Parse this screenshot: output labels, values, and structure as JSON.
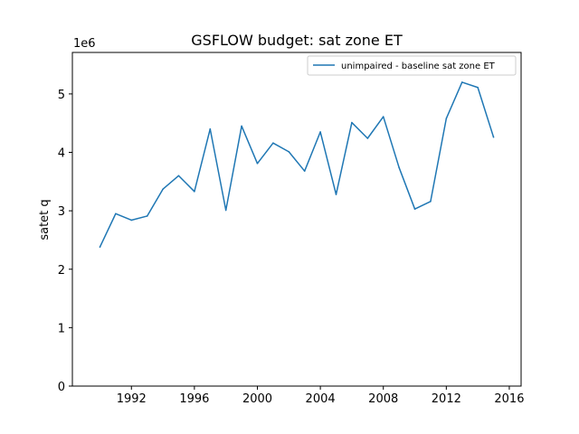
{
  "chart_data": {
    "type": "line",
    "title": "GSFLOW budget: sat zone ET",
    "xlabel": "",
    "ylabel": "satet q",
    "y_scale_label": "1e6",
    "xlim": [
      1988.25,
      2016.75
    ],
    "ylim": [
      0,
      5.71
    ],
    "x_ticks": [
      1992,
      1996,
      2000,
      2004,
      2008,
      2012,
      2016
    ],
    "y_ticks": [
      0,
      1,
      2,
      3,
      4,
      5
    ],
    "grid": false,
    "legend_position": "top-right",
    "series": [
      {
        "name": "unimpaired - baseline sat zone ET",
        "color": "#1f77b4",
        "x": [
          1990,
          1991,
          1992,
          1993,
          1994,
          1995,
          1996,
          1997,
          1998,
          1999,
          2000,
          2001,
          2002,
          2003,
          2004,
          2005,
          2006,
          2007,
          2008,
          2009,
          2010,
          2011,
          2012,
          2013,
          2014,
          2015
        ],
        "y": [
          2.38,
          2.95,
          2.84,
          2.91,
          3.37,
          3.6,
          3.33,
          4.4,
          3.01,
          4.45,
          3.81,
          4.16,
          4.01,
          3.68,
          4.35,
          3.28,
          4.51,
          4.24,
          4.61,
          3.74,
          3.03,
          3.16,
          4.58,
          5.2,
          5.11,
          4.26
        ]
      }
    ]
  }
}
